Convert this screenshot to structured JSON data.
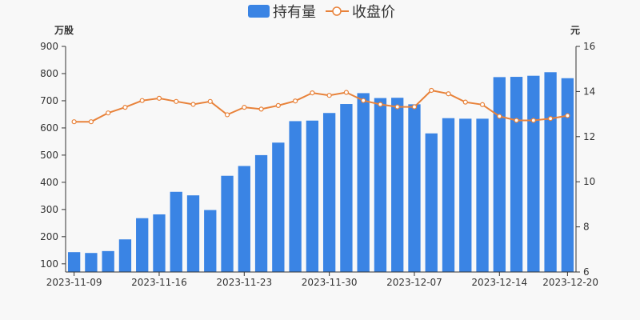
{
  "chart_data": {
    "type": "bar+line",
    "legend": {
      "position": "top-center",
      "items": [
        {
          "label": "持有量",
          "type": "bar",
          "color": "#3a84e4"
        },
        {
          "label": "收盘价",
          "type": "line",
          "color": "#e8823a"
        }
      ]
    },
    "units": {
      "left": "万股",
      "right": "元"
    },
    "y_left": {
      "ticks": [
        "100",
        "200",
        "300",
        "400",
        "500",
        "600",
        "700",
        "800",
        "900"
      ],
      "min": 70,
      "max": 900
    },
    "y_right": {
      "ticks": [
        "6",
        "8",
        "10",
        "12",
        "14",
        "16"
      ],
      "min": 6,
      "max": 16
    },
    "x_tick_labels": [
      {
        "label": "2023-11-09",
        "index": 0
      },
      {
        "label": "2023-11-16",
        "index": 5
      },
      {
        "label": "2023-11-23",
        "index": 10
      },
      {
        "label": "2023-11-30",
        "index": 15
      },
      {
        "label": "2023-12-07",
        "index": 20
      },
      {
        "label": "2023-12-14",
        "index": 25
      },
      {
        "label": "2023-12-20",
        "index": 29
      }
    ],
    "holdings": [
      143,
      140,
      147,
      190,
      268,
      282,
      365,
      352,
      298,
      424,
      460,
      500,
      546,
      625,
      627,
      655,
      688,
      728,
      710,
      711,
      687,
      580,
      636,
      634,
      634,
      787,
      788,
      792,
      805,
      783
    ],
    "close_price": [
      12.66,
      12.66,
      13.05,
      13.3,
      13.6,
      13.7,
      13.56,
      13.43,
      13.56,
      12.97,
      13.3,
      13.22,
      13.38,
      13.58,
      13.94,
      13.83,
      13.96,
      13.6,
      13.43,
      13.32,
      13.32,
      14.05,
      13.9,
      13.53,
      13.42,
      12.9,
      12.72,
      12.72,
      12.8,
      12.93
    ],
    "grid": false
  }
}
